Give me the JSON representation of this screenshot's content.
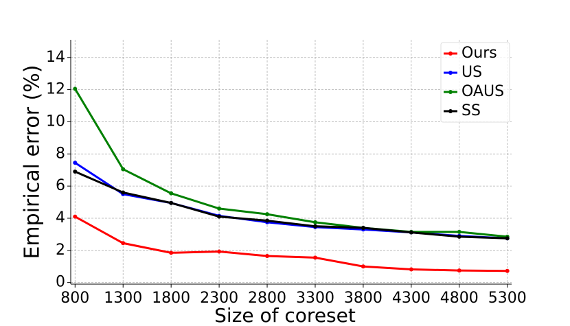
{
  "chart_data": {
    "type": "line",
    "x_label": "Size of coreset",
    "y_label": "Empirical error (%)",
    "x": [
      800,
      1300,
      1800,
      2300,
      2800,
      3300,
      3800,
      4300,
      4800,
      5300
    ],
    "xlim": [
      755,
      5345
    ],
    "xticks": [
      800,
      1300,
      1800,
      2300,
      2800,
      3300,
      3800,
      4300,
      4800,
      5300
    ],
    "ylim": [
      -0.1,
      15.1
    ],
    "yticks": [
      0,
      2,
      4,
      6,
      8,
      10,
      12,
      14
    ],
    "grid": true,
    "legend": "upper right",
    "series": [
      {
        "name": "Ours",
        "color": "#ff0000",
        "values": [
          4.1,
          2.45,
          1.85,
          1.93,
          1.65,
          1.55,
          1.0,
          0.82,
          0.75,
          0.72
        ]
      },
      {
        "name": "US",
        "color": "#0000ff",
        "values": [
          7.45,
          5.5,
          4.95,
          4.15,
          3.75,
          3.45,
          3.3,
          3.12,
          2.9,
          2.75
        ]
      },
      {
        "name": "OAUS",
        "color": "#008000",
        "values": [
          12.05,
          7.05,
          5.55,
          4.6,
          4.25,
          3.75,
          3.4,
          3.15,
          3.15,
          2.85
        ]
      },
      {
        "name": "SS",
        "color": "#000000",
        "values": [
          6.9,
          5.6,
          4.95,
          4.1,
          3.85,
          3.5,
          3.4,
          3.12,
          2.85,
          2.75
        ]
      }
    ]
  }
}
